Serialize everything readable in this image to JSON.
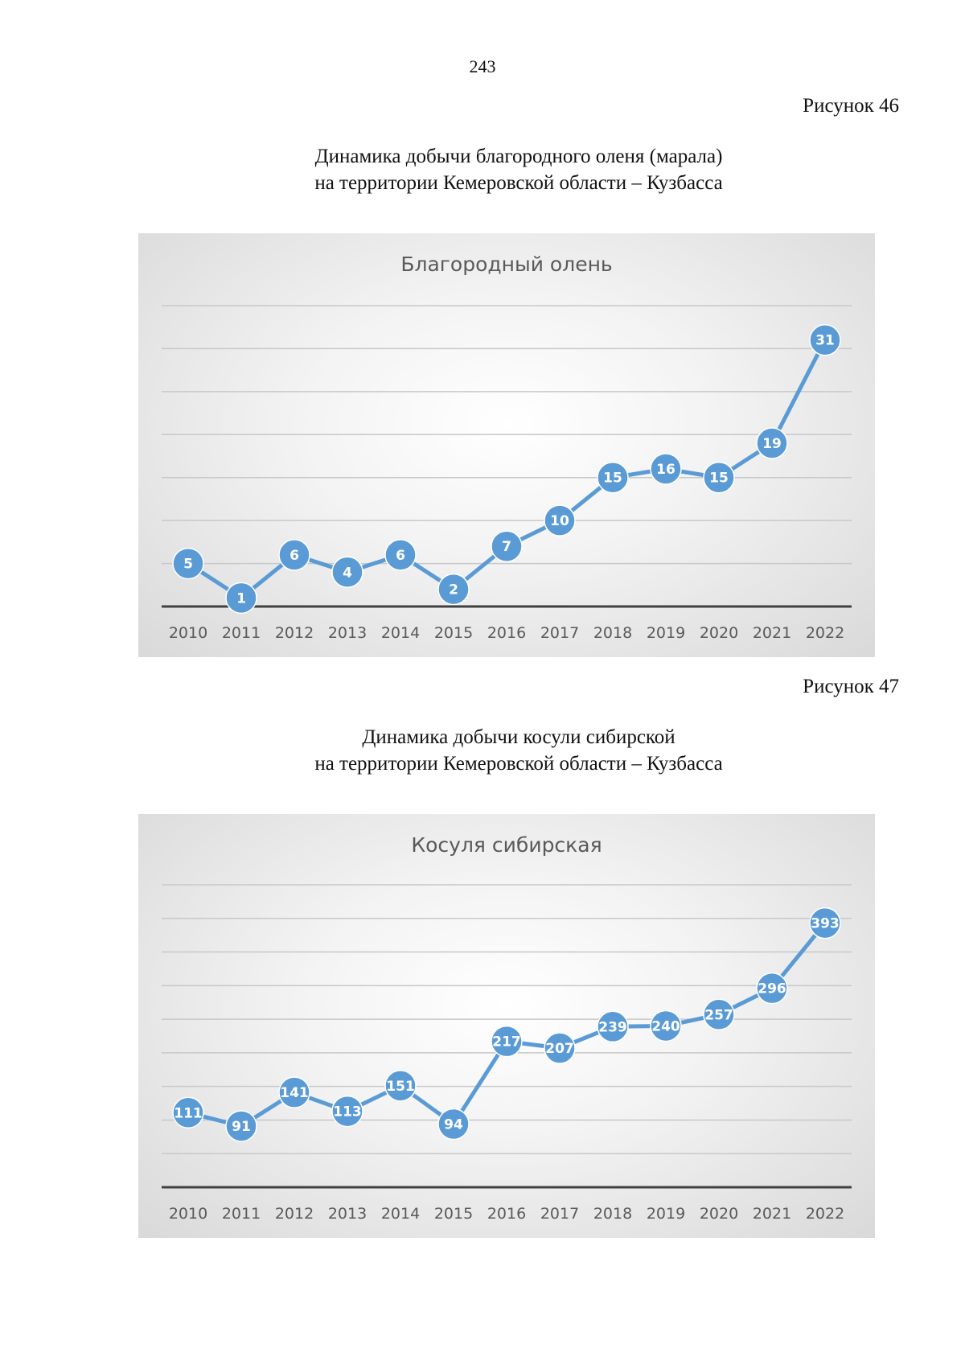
{
  "page": {
    "number": "243"
  },
  "figures": [
    {
      "label": "Рисунок 46",
      "caption_lines": [
        "Динамика добычи благородного оленя (марала)",
        "на территории Кемеровской области – Кузбасса"
      ]
    },
    {
      "label": "Рисунок 47",
      "caption_lines": [
        "Динамика добычи косули сибирской",
        "на территории Кемеровской области – Кузбасса"
      ]
    }
  ],
  "colors": {
    "series": "#5b9bd5",
    "grid": "#c8c8c8",
    "axis": "#404040"
  },
  "chart_data": [
    {
      "type": "line",
      "title": "Благородный олень",
      "categories": [
        "2010",
        "2011",
        "2012",
        "2013",
        "2014",
        "2015",
        "2016",
        "2017",
        "2018",
        "2019",
        "2020",
        "2021",
        "2022"
      ],
      "series": [
        {
          "values": [
            5,
            1,
            6,
            4,
            6,
            2,
            7,
            10,
            15,
            16,
            15,
            19,
            31
          ]
        }
      ],
      "ylim": [
        0,
        35
      ],
      "grid": true,
      "legend": "none",
      "data_labels": true
    },
    {
      "type": "line",
      "title": "Косуля сибирская",
      "categories": [
        "2010",
        "2011",
        "2012",
        "2013",
        "2014",
        "2015",
        "2016",
        "2017",
        "2018",
        "2019",
        "2020",
        "2021",
        "2022"
      ],
      "series": [
        {
          "values": [
            111,
            91,
            141,
            113,
            151,
            94,
            217,
            207,
            239,
            240,
            257,
            296,
            393
          ]
        }
      ],
      "ylim": [
        0,
        450
      ],
      "grid": true,
      "legend": "none",
      "data_labels": true
    }
  ]
}
